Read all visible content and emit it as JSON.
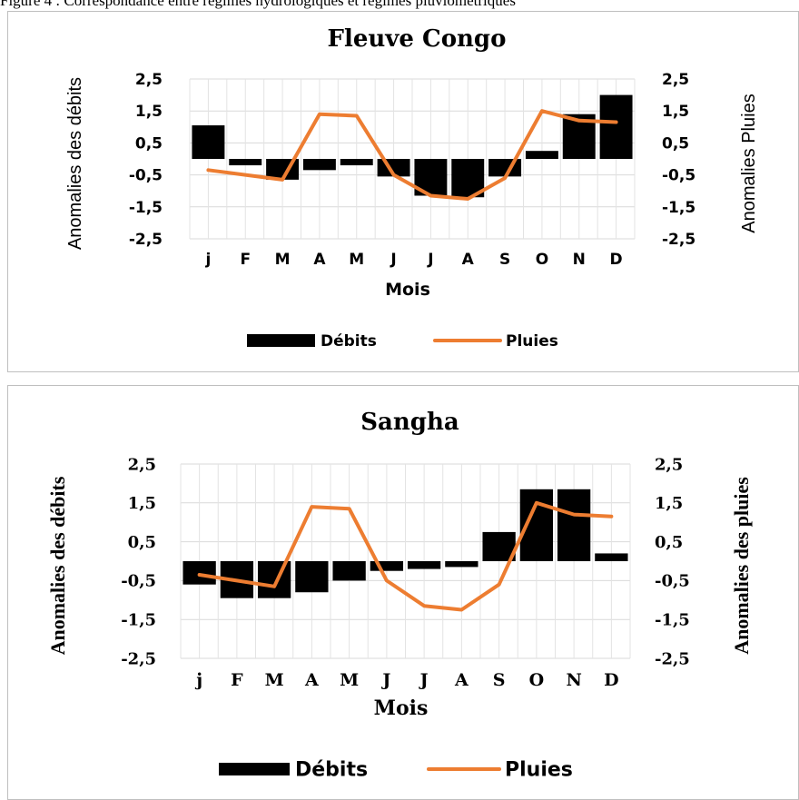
{
  "caption": "Figure 4 : Correspondance entre régimes hydrologiques et régimes pluviométriques",
  "chart_data": [
    {
      "type": "bar",
      "title": "Fleuve Congo",
      "categories": [
        "j",
        "F",
        "M",
        "A",
        "M",
        "J",
        "J",
        "A",
        "S",
        "O",
        "N",
        "D"
      ],
      "xlabel": "Mois",
      "ylabel": "Anomalies des débits",
      "ylabel_right": "Anomalies Pluies",
      "ylim": [
        -2.5,
        2.5
      ],
      "yticks": [
        "2,5",
        "1,5",
        "0,5",
        "-0,5",
        "-1,5",
        "-2,5"
      ],
      "grid": true,
      "legend_position": "bottom",
      "series": [
        {
          "name": "Débits",
          "type": "bar",
          "color": "#000000",
          "values": [
            1.05,
            -0.2,
            -0.65,
            -0.35,
            -0.2,
            -0.55,
            -1.15,
            -1.2,
            -0.55,
            0.25,
            1.4,
            2.0
          ]
        },
        {
          "name": "Pluies",
          "type": "line",
          "color": "#ed7d31",
          "values": [
            -0.35,
            -0.5,
            -0.65,
            1.4,
            1.35,
            -0.5,
            -1.15,
            -1.25,
            -0.6,
            1.5,
            1.2,
            1.15
          ]
        }
      ]
    },
    {
      "type": "bar",
      "title": "Sangha",
      "categories": [
        "j",
        "F",
        "M",
        "A",
        "M",
        "J",
        "J",
        "A",
        "S",
        "O",
        "N",
        "D"
      ],
      "xlabel": "Mois",
      "ylabel": "Anomalies des débits",
      "ylabel_right": "Anomalies des pluies",
      "ylim": [
        -2.5,
        2.5
      ],
      "yticks": [
        "2,5",
        "1,5",
        "0,5",
        "-0,5",
        "-1,5",
        "-2,5"
      ],
      "grid": true,
      "legend_position": "bottom",
      "series": [
        {
          "name": "Débits",
          "type": "bar",
          "color": "#000000",
          "values": [
            -0.6,
            -0.95,
            -0.95,
            -0.8,
            -0.5,
            -0.25,
            -0.2,
            -0.15,
            0.75,
            1.85,
            1.85,
            0.2
          ]
        },
        {
          "name": "Pluies",
          "type": "line",
          "color": "#ed7d31",
          "values": [
            -0.35,
            -0.5,
            -0.65,
            1.4,
            1.35,
            -0.5,
            -1.15,
            -1.25,
            -0.6,
            1.5,
            1.2,
            1.15
          ]
        }
      ]
    }
  ]
}
